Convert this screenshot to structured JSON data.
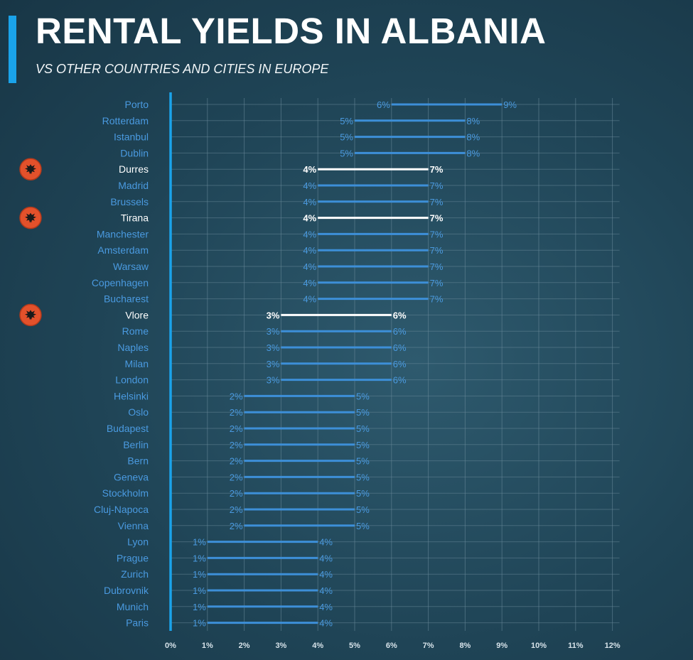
{
  "header": {
    "title": "RENTAL YIELDS IN ALBANIA",
    "subtitle": "VS OTHER COUNTRIES AND CITIES IN EUROPE"
  },
  "colors": {
    "background": "#1f4456",
    "accent": "#1aa3ea",
    "bar": "#3d8fd8",
    "label": "#4a9ae0",
    "highlight": "#ffffff",
    "flag": "#e3512b",
    "grid": "#6a8a9a"
  },
  "chart_data": {
    "type": "range-bar",
    "title": "RENTAL YIELDS IN ALBANIA",
    "subtitle": "VS OTHER COUNTRIES AND CITIES IN EUROPE",
    "xlim": [
      0,
      12
    ],
    "x_ticks": [
      "0%",
      "1%",
      "2%",
      "3%",
      "4%",
      "5%",
      "6%",
      "7%",
      "8%",
      "9%",
      "10%",
      "11%",
      "12%"
    ],
    "grid": true,
    "highlight_icon": "albania-flag-icon",
    "rows": [
      {
        "city": "Porto",
        "min": 6,
        "max": 9,
        "min_label": "6%",
        "max_label": "9%",
        "highlight": false
      },
      {
        "city": "Rotterdam",
        "min": 5,
        "max": 8,
        "min_label": "5%",
        "max_label": "8%",
        "highlight": false
      },
      {
        "city": "Istanbul",
        "min": 5,
        "max": 8,
        "min_label": "5%",
        "max_label": "8%",
        "highlight": false
      },
      {
        "city": "Dublin",
        "min": 5,
        "max": 8,
        "min_label": "5%",
        "max_label": "8%",
        "highlight": false
      },
      {
        "city": "Durres",
        "min": 4,
        "max": 7,
        "min_label": "4%",
        "max_label": "7%",
        "highlight": true
      },
      {
        "city": "Madrid",
        "min": 4,
        "max": 7,
        "min_label": "4%",
        "max_label": "7%",
        "highlight": false
      },
      {
        "city": "Brussels",
        "min": 4,
        "max": 7,
        "min_label": "4%",
        "max_label": "7%",
        "highlight": false
      },
      {
        "city": "Tirana",
        "min": 4,
        "max": 7,
        "min_label": "4%",
        "max_label": "7%",
        "highlight": true
      },
      {
        "city": "Manchester",
        "min": 4,
        "max": 7,
        "min_label": "4%",
        "max_label": "7%",
        "highlight": false
      },
      {
        "city": "Amsterdam",
        "min": 4,
        "max": 7,
        "min_label": "4%",
        "max_label": "7%",
        "highlight": false
      },
      {
        "city": "Warsaw",
        "min": 4,
        "max": 7,
        "min_label": "4%",
        "max_label": "7%",
        "highlight": false
      },
      {
        "city": "Copenhagen",
        "min": 4,
        "max": 7,
        "min_label": "4%",
        "max_label": "7%",
        "highlight": false
      },
      {
        "city": "Bucharest",
        "min": 4,
        "max": 7,
        "min_label": "4%",
        "max_label": "7%",
        "highlight": false
      },
      {
        "city": "Vlore",
        "min": 3,
        "max": 6,
        "min_label": "3%",
        "max_label": "6%",
        "highlight": true
      },
      {
        "city": "Rome",
        "min": 3,
        "max": 6,
        "min_label": "3%",
        "max_label": "6%",
        "highlight": false
      },
      {
        "city": "Naples",
        "min": 3,
        "max": 6,
        "min_label": "3%",
        "max_label": "6%",
        "highlight": false
      },
      {
        "city": "Milan",
        "min": 3,
        "max": 6,
        "min_label": "3%",
        "max_label": "6%",
        "highlight": false
      },
      {
        "city": "London",
        "min": 3,
        "max": 6,
        "min_label": "3%",
        "max_label": "6%",
        "highlight": false
      },
      {
        "city": "Helsinki",
        "min": 2,
        "max": 5,
        "min_label": "2%",
        "max_label": "5%",
        "highlight": false
      },
      {
        "city": "Oslo",
        "min": 2,
        "max": 5,
        "min_label": "2%",
        "max_label": "5%",
        "highlight": false
      },
      {
        "city": "Budapest",
        "min": 2,
        "max": 5,
        "min_label": "2%",
        "max_label": "5%",
        "highlight": false
      },
      {
        "city": "Berlin",
        "min": 2,
        "max": 5,
        "min_label": "2%",
        "max_label": "5%",
        "highlight": false
      },
      {
        "city": "Bern",
        "min": 2,
        "max": 5,
        "min_label": "2%",
        "max_label": "5%",
        "highlight": false
      },
      {
        "city": "Geneva",
        "min": 2,
        "max": 5,
        "min_label": "2%",
        "max_label": "5%",
        "highlight": false
      },
      {
        "city": "Stockholm",
        "min": 2,
        "max": 5,
        "min_label": "2%",
        "max_label": "5%",
        "highlight": false
      },
      {
        "city": "Cluj-Napoca",
        "min": 2,
        "max": 5,
        "min_label": "2%",
        "max_label": "5%",
        "highlight": false
      },
      {
        "city": "Vienna",
        "min": 2,
        "max": 5,
        "min_label": "2%",
        "max_label": "5%",
        "highlight": false
      },
      {
        "city": "Lyon",
        "min": 1,
        "max": 4,
        "min_label": "1%",
        "max_label": "4%",
        "highlight": false
      },
      {
        "city": "Prague",
        "min": 1,
        "max": 4,
        "min_label": "1%",
        "max_label": "4%",
        "highlight": false
      },
      {
        "city": "Zurich",
        "min": 1,
        "max": 4,
        "min_label": "1%",
        "max_label": "4%",
        "highlight": false
      },
      {
        "city": "Dubrovnik",
        "min": 1,
        "max": 4,
        "min_label": "1%",
        "max_label": "4%",
        "highlight": false
      },
      {
        "city": "Munich",
        "min": 1,
        "max": 4,
        "min_label": "1%",
        "max_label": "4%",
        "highlight": false
      },
      {
        "city": "Paris",
        "min": 1,
        "max": 4,
        "min_label": "1%",
        "max_label": "4%",
        "highlight": false
      }
    ]
  }
}
